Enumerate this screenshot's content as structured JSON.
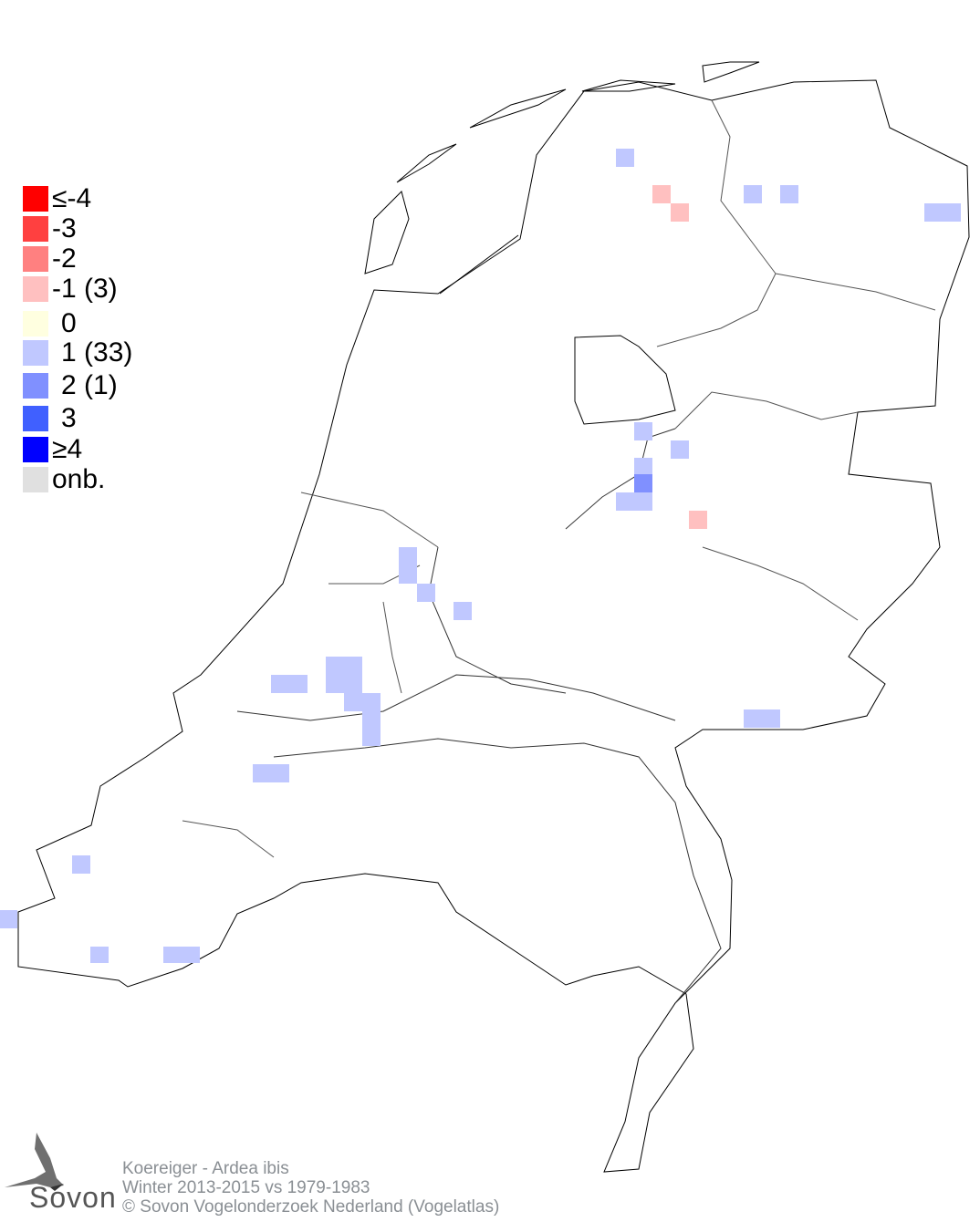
{
  "legend": {
    "items": [
      {
        "label": "≤-4",
        "color": "#ff0000"
      },
      {
        "label": "-3",
        "color": "#ff4040"
      },
      {
        "label": "-2",
        "color": "#ff8080"
      },
      {
        "label": "-1 (3)",
        "color": "#ffc0c0"
      },
      {
        "label": "0",
        "color": "#ffffe0"
      },
      {
        "label": "1 (33)",
        "color": "#c0c8ff"
      },
      {
        "label": "2 (1)",
        "color": "#8090ff"
      },
      {
        "label": "3",
        "color": "#4060ff"
      },
      {
        "label": "≥4",
        "color": "#0000ff"
      },
      {
        "label": "onb.",
        "color": "#e0e0e0"
      }
    ]
  },
  "footer": {
    "species": "Koereiger - Ardea ibis",
    "period": "Winter 2013-2015 vs 1979-1983",
    "copyright": "© Sovon Vogelonderzoek Nederland (Vogelatlas)"
  },
  "logo": {
    "text": "Sovon"
  }
}
